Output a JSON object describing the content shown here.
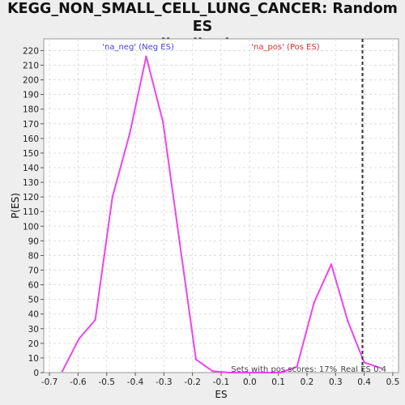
{
  "chart_data": {
    "type": "line",
    "title_line1": "KEGG_NON_SMALL_CELL_LUNG_CANCER: Random ES",
    "title_line2": "distribution",
    "xlabel": "ES",
    "ylabel": "P(ES)",
    "xlim": [
      -0.72,
      0.52
    ],
    "ylim": [
      0,
      228
    ],
    "xticks": [
      -0.7,
      -0.6,
      -0.5,
      -0.4,
      -0.3,
      -0.2,
      -0.1,
      0.0,
      0.1,
      0.2,
      0.3,
      0.4,
      0.5
    ],
    "xtick_labels": [
      "-0.7",
      "-0.6",
      "-0.5",
      "-0.4",
      "-0.3",
      "-0.2",
      "-0.1",
      "0.0",
      "0.1",
      "0.2",
      "0.3",
      "0.4",
      "0.5"
    ],
    "yticks": [
      0,
      10,
      20,
      30,
      40,
      50,
      60,
      70,
      80,
      90,
      100,
      110,
      120,
      130,
      140,
      150,
      160,
      170,
      180,
      190,
      200,
      210,
      220
    ],
    "grid": true,
    "line_color": "#ee44ee",
    "series": [
      {
        "x": [
          -0.655,
          -0.597,
          -0.54,
          -0.48,
          -0.42,
          -0.362,
          -0.303,
          -0.245,
          -0.188,
          -0.13,
          -0.07,
          -0.01,
          0.05,
          0.108,
          0.165,
          0.225,
          0.285,
          0.343,
          0.4,
          0.46
        ],
        "values": [
          1,
          23,
          36,
          120,
          163,
          216,
          171,
          89,
          9,
          1,
          0,
          0,
          0,
          0,
          4,
          48,
          74,
          35,
          7,
          3
        ]
      }
    ],
    "legend": {
      "neg_label": "'na_neg' (Neg ES)",
      "pos_label": "'na_pos' (Pos ES)",
      "neg_color": "#4444cc",
      "pos_color": "#cc3333"
    },
    "real_es": 0.394,
    "real_es_label": "Real ES 0.4",
    "pos_scores_label": "Sets with pos scores: 17%"
  }
}
